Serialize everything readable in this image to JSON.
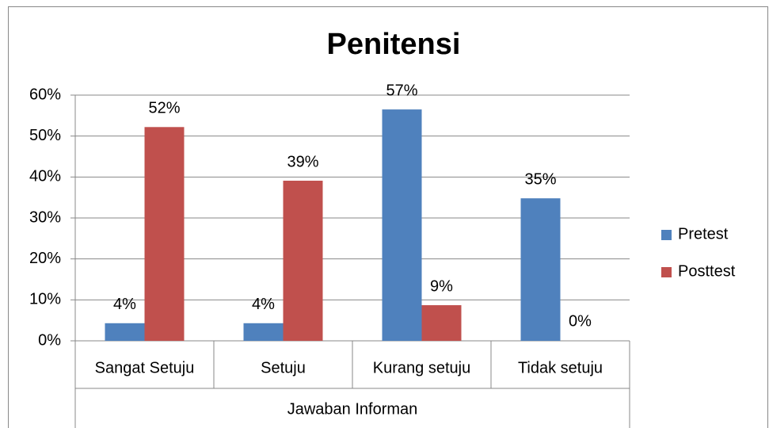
{
  "chart_data": {
    "type": "bar",
    "title": "Penitensi",
    "x_label": "Jawaban Informan",
    "categories": [
      "Sangat Setuju",
      "Setuju",
      "Kurang setuju",
      "Tidak setuju"
    ],
    "series": [
      {
        "name": "Pretest",
        "color": "#4f81bd",
        "values": [
          4.3,
          4.3,
          56.5,
          34.8
        ],
        "value_labels": [
          "4%",
          "4%",
          "57%",
          "35%"
        ]
      },
      {
        "name": "Posttest",
        "color": "#c0504d",
        "values": [
          52.2,
          39.1,
          8.7,
          0
        ],
        "value_labels": [
          "52%",
          "39%",
          "9%",
          "0%"
        ]
      }
    ],
    "ylim": [
      0,
      60
    ],
    "yticks": [
      {
        "value": 0,
        "label": "0%"
      },
      {
        "value": 10,
        "label": "10%"
      },
      {
        "value": 20,
        "label": "20%"
      },
      {
        "value": 30,
        "label": "30%"
      },
      {
        "value": 40,
        "label": "40%"
      },
      {
        "value": 50,
        "label": "50%"
      },
      {
        "value": 60,
        "label": "60%"
      }
    ],
    "grid": true,
    "legend": "right"
  }
}
